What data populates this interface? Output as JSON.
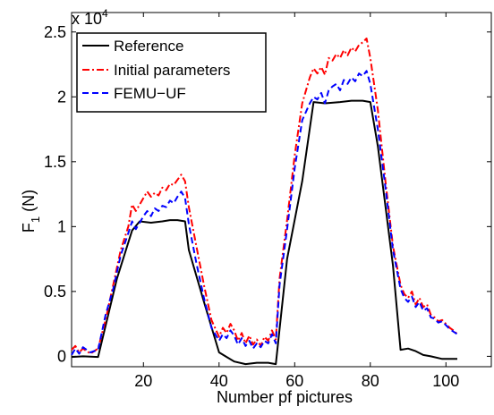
{
  "chart_data": {
    "type": "line",
    "title": "",
    "xlabel": "Number pf pictures",
    "ylabel": "F",
    "ylabel_sub": "1",
    "ylabel_unit": "(N)",
    "y_multiplier": {
      "base": "x 10",
      "exponent": "4"
    },
    "xlim": [
      1,
      112
    ],
    "ylim": [
      -0.08,
      2.65
    ],
    "xticks": [
      20,
      40,
      60,
      80,
      100
    ],
    "yticks": [
      0,
      0.5,
      1,
      1.5,
      2,
      2.5
    ],
    "ytick_labels": [
      "0",
      "0.5",
      "1",
      "1.5",
      "2",
      "2.5"
    ],
    "legend_position": "top-left",
    "grid": false,
    "series": [
      {
        "name": "Reference",
        "color": "#000000",
        "dash": "solid",
        "x": [
          1,
          4,
          8,
          13,
          17,
          19,
          22,
          25,
          27,
          29,
          31,
          32,
          36,
          40,
          44,
          47,
          50,
          53,
          55,
          58,
          62,
          65,
          68,
          72,
          75,
          78,
          80,
          82,
          86,
          88,
          90,
          92,
          94,
          96,
          99,
          103
        ],
        "y": [
          -0.005,
          0.0,
          -0.005,
          0.6,
          0.97,
          1.04,
          1.03,
          1.04,
          1.05,
          1.05,
          1.04,
          0.82,
          0.42,
          0.03,
          -0.04,
          -0.06,
          -0.05,
          -0.05,
          -0.06,
          0.75,
          1.35,
          1.96,
          1.95,
          1.96,
          1.97,
          1.97,
          1.96,
          1.62,
          0.7,
          0.05,
          0.06,
          0.04,
          0.01,
          0.0,
          -0.02,
          -0.02
        ]
      },
      {
        "name": "Initial parameters",
        "color": "#ff0000",
        "dash": "dashdot",
        "x": [
          1,
          2,
          3,
          4,
          6,
          8,
          10,
          12,
          14,
          16,
          17,
          18,
          19,
          20,
          21,
          22,
          23,
          24,
          25,
          26,
          27,
          28,
          29,
          30,
          31,
          32,
          34,
          36,
          38,
          40,
          41,
          42,
          43,
          44,
          45,
          46,
          47,
          48,
          49,
          50,
          51,
          52,
          53,
          54,
          55,
          56,
          58,
          60,
          62,
          64,
          65,
          66,
          67,
          68,
          69,
          70,
          71,
          72,
          73,
          74,
          75,
          76,
          77,
          78,
          79,
          80,
          82,
          84,
          86,
          88,
          89,
          90,
          91,
          92,
          93,
          94,
          95,
          96,
          97,
          98,
          99,
          100,
          101,
          102,
          103
        ],
        "y": [
          0.05,
          0.08,
          0.03,
          0.06,
          0.02,
          0.06,
          0.28,
          0.55,
          0.82,
          1.0,
          1.17,
          1.12,
          1.17,
          1.22,
          1.27,
          1.23,
          1.26,
          1.24,
          1.3,
          1.28,
          1.33,
          1.32,
          1.36,
          1.4,
          1.35,
          1.15,
          0.85,
          0.55,
          0.28,
          0.15,
          0.22,
          0.18,
          0.25,
          0.2,
          0.12,
          0.18,
          0.1,
          0.16,
          0.09,
          0.13,
          0.08,
          0.15,
          0.12,
          0.2,
          0.13,
          0.6,
          1.05,
          1.55,
          1.95,
          2.15,
          2.22,
          2.18,
          2.23,
          2.17,
          2.3,
          2.28,
          2.33,
          2.3,
          2.36,
          2.32,
          2.38,
          2.35,
          2.4,
          2.42,
          2.45,
          2.3,
          1.9,
          1.35,
          0.85,
          0.55,
          0.48,
          0.45,
          0.5,
          0.4,
          0.45,
          0.38,
          0.4,
          0.32,
          0.3,
          0.27,
          0.28,
          0.25,
          0.22,
          0.2,
          0.17
        ]
      },
      {
        "name": "FEMU−UF",
        "color": "#0000ff",
        "dash": "dashed",
        "x": [
          1,
          2,
          3,
          4,
          6,
          8,
          10,
          12,
          14,
          16,
          17,
          18,
          19,
          20,
          21,
          22,
          23,
          24,
          25,
          26,
          27,
          28,
          29,
          30,
          31,
          32,
          34,
          36,
          38,
          40,
          41,
          42,
          43,
          44,
          45,
          46,
          47,
          48,
          49,
          50,
          51,
          52,
          53,
          54,
          55,
          56,
          58,
          60,
          62,
          64,
          65,
          66,
          67,
          68,
          69,
          70,
          71,
          72,
          73,
          74,
          75,
          76,
          77,
          78,
          79,
          80,
          82,
          84,
          86,
          88,
          89,
          90,
          91,
          92,
          93,
          94,
          95,
          96,
          97,
          98,
          99,
          100,
          101,
          102,
          103
        ],
        "y": [
          0.01,
          0.06,
          0.02,
          0.07,
          0.03,
          0.05,
          0.32,
          0.52,
          0.78,
          0.95,
          1.04,
          0.98,
          1.03,
          1.08,
          1.12,
          1.08,
          1.14,
          1.12,
          1.16,
          1.15,
          1.2,
          1.18,
          1.23,
          1.27,
          1.22,
          1.02,
          0.72,
          0.45,
          0.22,
          0.12,
          0.17,
          0.14,
          0.2,
          0.16,
          0.09,
          0.14,
          0.08,
          0.12,
          0.06,
          0.1,
          0.07,
          0.12,
          0.1,
          0.17,
          0.1,
          0.55,
          0.98,
          1.45,
          1.82,
          1.95,
          2.0,
          1.98,
          2.03,
          1.95,
          2.05,
          2.08,
          2.1,
          2.05,
          2.13,
          2.1,
          2.15,
          2.12,
          2.18,
          2.16,
          2.2,
          2.1,
          1.75,
          1.3,
          0.82,
          0.52,
          0.45,
          0.42,
          0.46,
          0.38,
          0.42,
          0.35,
          0.37,
          0.3,
          0.29,
          0.26,
          0.27,
          0.24,
          0.21,
          0.19,
          0.17
        ]
      }
    ]
  }
}
